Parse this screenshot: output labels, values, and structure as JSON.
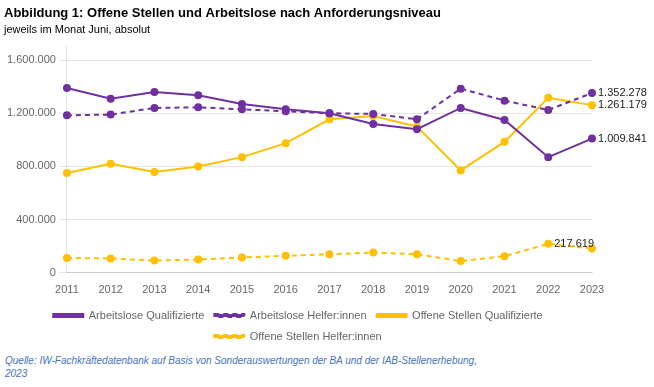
{
  "chart_data": {
    "type": "line",
    "title": "Abbildung 1: Offene Stellen und Arbeitslose nach Anforderungsniveau",
    "subtitle": "jeweils im Monat Juni, absolut",
    "source": "Quelle: IW-Fachkräftedatenbank auf Basis von Sonderauswertungen der BA und der IAB-Stellenerhebung,\n2023",
    "categories": [
      "2011",
      "2012",
      "2013",
      "2014",
      "2015",
      "2016",
      "2017",
      "2018",
      "2019",
      "2020",
      "2021",
      "2022",
      "2023"
    ],
    "series": [
      {
        "name": "Arbeitslose Qualifizierte",
        "color": "#7030A0",
        "marker": "circle",
        "line_style": "solid",
        "values": [
          1390000,
          1310000,
          1360000,
          1335000,
          1270000,
          1230000,
          1200000,
          1120000,
          1080000,
          1240000,
          1150000,
          870000,
          1009841
        ]
      },
      {
        "name": "Arbeitslose Helfer:innen",
        "color": "#7030A0",
        "marker": "circle",
        "line_style": "dashed",
        "values": [
          1185000,
          1190000,
          1240000,
          1245000,
          1230000,
          1215000,
          1200000,
          1195000,
          1155000,
          1385000,
          1295000,
          1225000,
          1352278
        ]
      },
      {
        "name": "Offene Stellen Qualifizierte",
        "color": "#FFC000",
        "marker": "circle",
        "line_style": "solid",
        "values": [
          750000,
          820000,
          758000,
          800000,
          870000,
          975000,
          1155000,
          1180000,
          1100000,
          770000,
          985000,
          1317000,
          1261179
        ]
      },
      {
        "name": "Offene Stellen Helfer:innen",
        "color": "#FFC000",
        "marker": "circle",
        "line_style": "dashed",
        "values": [
          112000,
          108000,
          92000,
          100000,
          115000,
          128000,
          140000,
          152000,
          140000,
          88000,
          125000,
          217619,
          183000
        ]
      }
    ],
    "ylim": [
      0,
      1700000
    ],
    "yticks": [
      0,
      {
        "value": 400000,
        "label": "400.000"
      },
      {
        "value": 800000,
        "label": "800.000"
      },
      {
        "value": 1200000,
        "label": "1.200.000"
      },
      {
        "value": 1600000,
        "label": "1.600.000"
      }
    ],
    "grid": "y",
    "legend": "bottom",
    "annotations": [
      {
        "text": "1.352.278",
        "x": "2023",
        "y": 1352278
      },
      {
        "text": "1.261.179",
        "x": "2023",
        "y": 1261179
      },
      {
        "text": "1.009.841",
        "x": "2023",
        "y": 1009841
      },
      {
        "text": "217.619",
        "x": "2022",
        "y": 217619
      }
    ]
  }
}
